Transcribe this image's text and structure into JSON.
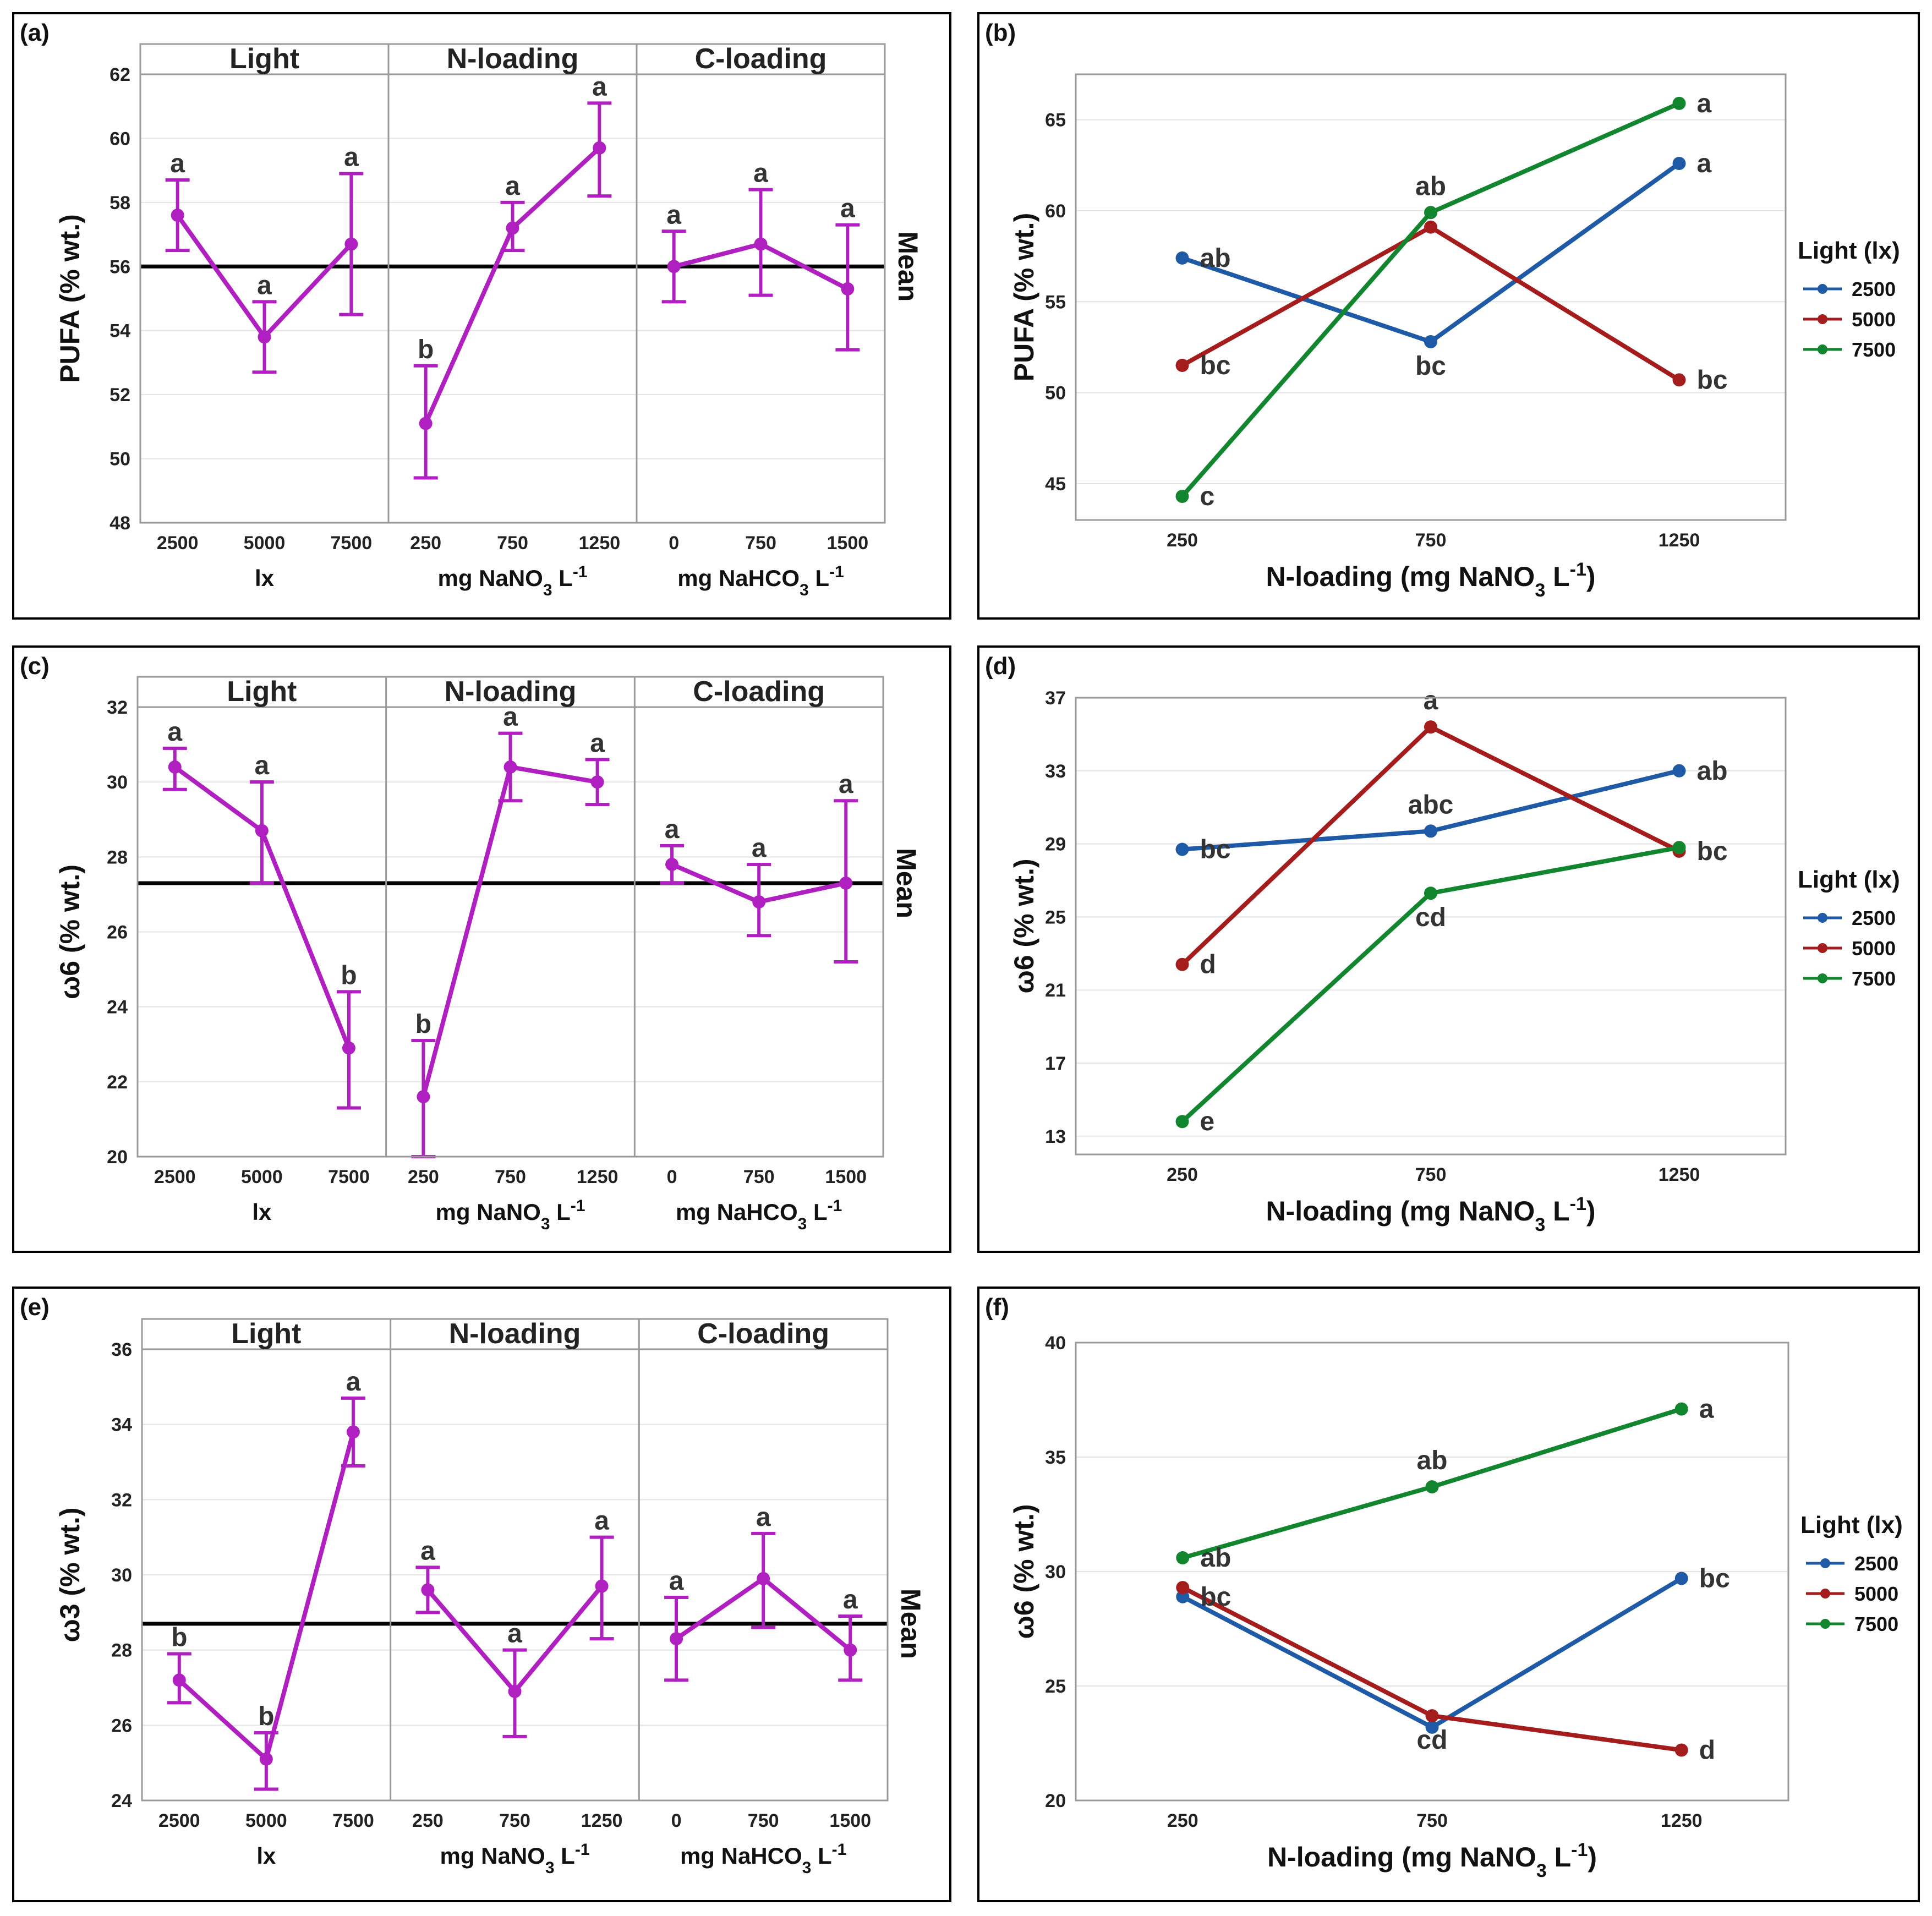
{
  "colors": {
    "main_effects": "#b01fc0",
    "mean_line": "#000000",
    "series_2500": "#1f5aa6",
    "series_5000": "#a51c1c",
    "series_7500": "#12862e"
  },
  "chart_data": [
    {
      "type": "line",
      "panel": "(a)",
      "kind": "main_effects",
      "ylabel": "PUFA (% wt.)",
      "ylim": [
        48,
        62
      ],
      "yticks": [
        48,
        50,
        52,
        54,
        56,
        58,
        60,
        62
      ],
      "mean": 56.0,
      "mean_label": "Mean",
      "groups": [
        {
          "header": "Light",
          "unit": "lx",
          "categories": [
            "2500",
            "5000",
            "7500"
          ],
          "values": [
            57.6,
            53.8,
            56.7
          ],
          "err_low": [
            56.5,
            52.7,
            54.5
          ],
          "err_high": [
            58.7,
            54.9,
            58.9
          ],
          "letters": [
            "a",
            "a",
            "a"
          ]
        },
        {
          "header": "N-loading",
          "unit": "mg NaNO3 L-1",
          "unit_parts": [
            "mg NaNO",
            "3",
            " L",
            "-1"
          ],
          "categories": [
            "250",
            "750",
            "1250"
          ],
          "values": [
            51.1,
            57.2,
            59.7
          ],
          "err_low": [
            49.4,
            56.5,
            58.2
          ],
          "err_high": [
            52.9,
            58.0,
            61.1
          ],
          "letters": [
            "b",
            "a",
            "a"
          ]
        },
        {
          "header": "C-loading",
          "unit": "mg NaHCO3 L-1",
          "unit_parts": [
            "mg NaHCO",
            "3",
            " L",
            "-1"
          ],
          "categories": [
            "0",
            "750",
            "1500"
          ],
          "values": [
            56.0,
            56.7,
            55.3
          ],
          "err_low": [
            54.9,
            55.1,
            53.4
          ],
          "err_high": [
            57.1,
            58.4,
            57.3
          ],
          "letters": [
            "a",
            "a",
            "a"
          ]
        }
      ]
    },
    {
      "type": "line",
      "panel": "(b)",
      "kind": "interaction",
      "ylabel": "PUFA  (% wt.)",
      "xlabel_parts": [
        "N-loading (mg NaNO",
        "3",
        " L",
        "-1",
        ")"
      ],
      "xlabel": "N-loading (mg NaNO3 L-1)",
      "categories": [
        "250",
        "750",
        "1250"
      ],
      "ylim": [
        43,
        67.5
      ],
      "yticks": [
        45,
        50,
        55,
        60,
        65
      ],
      "legend_title": "Light (lx)",
      "series": [
        {
          "name": "2500",
          "values": [
            57.4,
            52.8,
            62.6
          ]
        },
        {
          "name": "5000",
          "values": [
            51.5,
            59.1,
            50.7
          ]
        },
        {
          "name": "7500",
          "values": [
            44.3,
            59.9,
            65.9
          ]
        }
      ],
      "letters": [
        {
          "text": "ab",
          "series": 0,
          "point": 0
        },
        {
          "text": "bc",
          "series": 1,
          "point": 0
        },
        {
          "text": "c",
          "series": 2,
          "point": 0
        },
        {
          "text": "ab",
          "series": 2,
          "point": 1
        },
        {
          "text": "bc",
          "series": 0,
          "point": 1
        },
        {
          "text": "a",
          "series": 2,
          "point": 2
        },
        {
          "text": "a",
          "series": 0,
          "point": 2
        },
        {
          "text": "bc",
          "series": 1,
          "point": 2
        }
      ]
    },
    {
      "type": "line",
      "panel": "(c)",
      "kind": "main_effects",
      "ylabel": "ω6 (% wt.)",
      "ylim": [
        20,
        32
      ],
      "yticks": [
        20,
        22,
        24,
        26,
        28,
        30,
        32
      ],
      "mean": 27.3,
      "mean_label": "Mean",
      "groups": [
        {
          "header": "Light",
          "unit": "lx",
          "categories": [
            "2500",
            "5000",
            "7500"
          ],
          "values": [
            30.4,
            28.7,
            22.9
          ],
          "err_low": [
            29.8,
            27.3,
            21.3
          ],
          "err_high": [
            30.9,
            30.0,
            24.4
          ],
          "letters": [
            "a",
            "a",
            "b"
          ]
        },
        {
          "header": "N-loading",
          "unit": "mg NaNO3 L-1",
          "unit_parts": [
            "mg NaNO",
            "3",
            " L",
            "-1"
          ],
          "categories": [
            "250",
            "750",
            "1250"
          ],
          "values": [
            21.6,
            30.4,
            30.0
          ],
          "err_low": [
            20.0,
            29.5,
            29.4
          ],
          "err_high": [
            23.1,
            31.3,
            30.6
          ],
          "letters": [
            "b",
            "a",
            "a"
          ]
        },
        {
          "header": "C-loading",
          "unit": "mg NaHCO3 L-1",
          "unit_parts": [
            "mg NaHCO",
            "3",
            " L",
            "-1"
          ],
          "categories": [
            "0",
            "750",
            "1500"
          ],
          "values": [
            27.8,
            26.8,
            27.3
          ],
          "err_low": [
            27.3,
            25.9,
            25.2
          ],
          "err_high": [
            28.3,
            27.8,
            29.5
          ],
          "letters": [
            "a",
            "a",
            "a"
          ]
        }
      ]
    },
    {
      "type": "line",
      "panel": "(d)",
      "kind": "interaction",
      "ylabel": "ω6  (% wt.)",
      "xlabel_parts": [
        "N-loading (mg NaNO",
        "3",
        " L",
        "-1",
        ")"
      ],
      "xlabel": "N-loading (mg NaNO3 L-1)",
      "categories": [
        "250",
        "750",
        "1250"
      ],
      "ylim": [
        12,
        37
      ],
      "yticks": [
        13,
        17,
        21,
        25,
        29,
        33,
        37
      ],
      "legend_title": "Light (lx)",
      "series": [
        {
          "name": "2500",
          "values": [
            28.7,
            29.7,
            33.0
          ]
        },
        {
          "name": "5000",
          "values": [
            22.4,
            35.4,
            28.6
          ]
        },
        {
          "name": "7500",
          "values": [
            13.8,
            26.3,
            28.8
          ]
        }
      ],
      "letters": [
        {
          "text": "bc",
          "series": 0,
          "point": 0
        },
        {
          "text": "d",
          "series": 1,
          "point": 0
        },
        {
          "text": "e",
          "series": 2,
          "point": 0
        },
        {
          "text": "a",
          "series": 1,
          "point": 1
        },
        {
          "text": "abc",
          "series": 0,
          "point": 1
        },
        {
          "text": "cd",
          "series": 2,
          "point": 1
        },
        {
          "text": "ab",
          "series": 0,
          "point": 2
        },
        {
          "text": "bc",
          "series": 1,
          "point": 2
        }
      ]
    },
    {
      "type": "line",
      "panel": "(e)",
      "kind": "main_effects",
      "ylabel": "ω3 (% wt.)",
      "ylim": [
        24,
        36
      ],
      "yticks": [
        24,
        26,
        28,
        30,
        32,
        34,
        36
      ],
      "mean": 28.7,
      "mean_label": "Mean",
      "groups": [
        {
          "header": "Light",
          "unit": "lx",
          "categories": [
            "2500",
            "5000",
            "7500"
          ],
          "values": [
            27.2,
            25.1,
            33.8
          ],
          "err_low": [
            26.6,
            24.3,
            32.9
          ],
          "err_high": [
            27.9,
            25.8,
            34.7
          ],
          "letters": [
            "b",
            "b",
            "a"
          ]
        },
        {
          "header": "N-loading",
          "unit": "mg NaNO3 L-1",
          "unit_parts": [
            "mg NaNO",
            "3",
            " L",
            "-1"
          ],
          "categories": [
            "250",
            "750",
            "1250"
          ],
          "values": [
            29.6,
            26.9,
            29.7
          ],
          "err_low": [
            29.0,
            25.7,
            28.3
          ],
          "err_high": [
            30.2,
            28.0,
            31.0
          ],
          "letters": [
            "a",
            "a",
            "a"
          ]
        },
        {
          "header": "C-loading",
          "unit": "mg NaHCO3 L-1",
          "unit_parts": [
            "mg NaHCO",
            "3",
            " L",
            "-1"
          ],
          "categories": [
            "0",
            "750",
            "1500"
          ],
          "values": [
            28.3,
            29.9,
            28.0
          ],
          "err_low": [
            27.2,
            28.6,
            27.2
          ],
          "err_high": [
            29.4,
            31.1,
            28.9
          ],
          "letters": [
            "a",
            "a",
            "a"
          ]
        }
      ]
    },
    {
      "type": "line",
      "panel": "(f)",
      "kind": "interaction",
      "ylabel": "ω6  (% wt.)",
      "xlabel_parts": [
        "N-loading (mg NaNO",
        "3",
        " L",
        "-1",
        ")"
      ],
      "xlabel": "N-loading (mg NaNO3 L-1)",
      "categories": [
        "250",
        "750",
        "1250"
      ],
      "ylim": [
        20,
        40
      ],
      "yticks": [
        20,
        25,
        30,
        35,
        40
      ],
      "legend_title": "Light (lx)",
      "series": [
        {
          "name": "2500",
          "values": [
            28.9,
            23.2,
            29.7
          ]
        },
        {
          "name": "5000",
          "values": [
            29.3,
            23.7,
            22.2
          ]
        },
        {
          "name": "7500",
          "values": [
            30.6,
            33.7,
            37.1
          ]
        }
      ],
      "letters": [
        {
          "text": "ab",
          "series": 2,
          "point": 0
        },
        {
          "text": "bc",
          "series": 0,
          "point": 0
        },
        {
          "text": "ab",
          "series": 2,
          "point": 1
        },
        {
          "text": "cd",
          "series": 1,
          "point": 1
        },
        {
          "text": "a",
          "series": 2,
          "point": 2
        },
        {
          "text": "bc",
          "series": 0,
          "point": 2
        },
        {
          "text": "d",
          "series": 1,
          "point": 2
        }
      ]
    }
  ]
}
